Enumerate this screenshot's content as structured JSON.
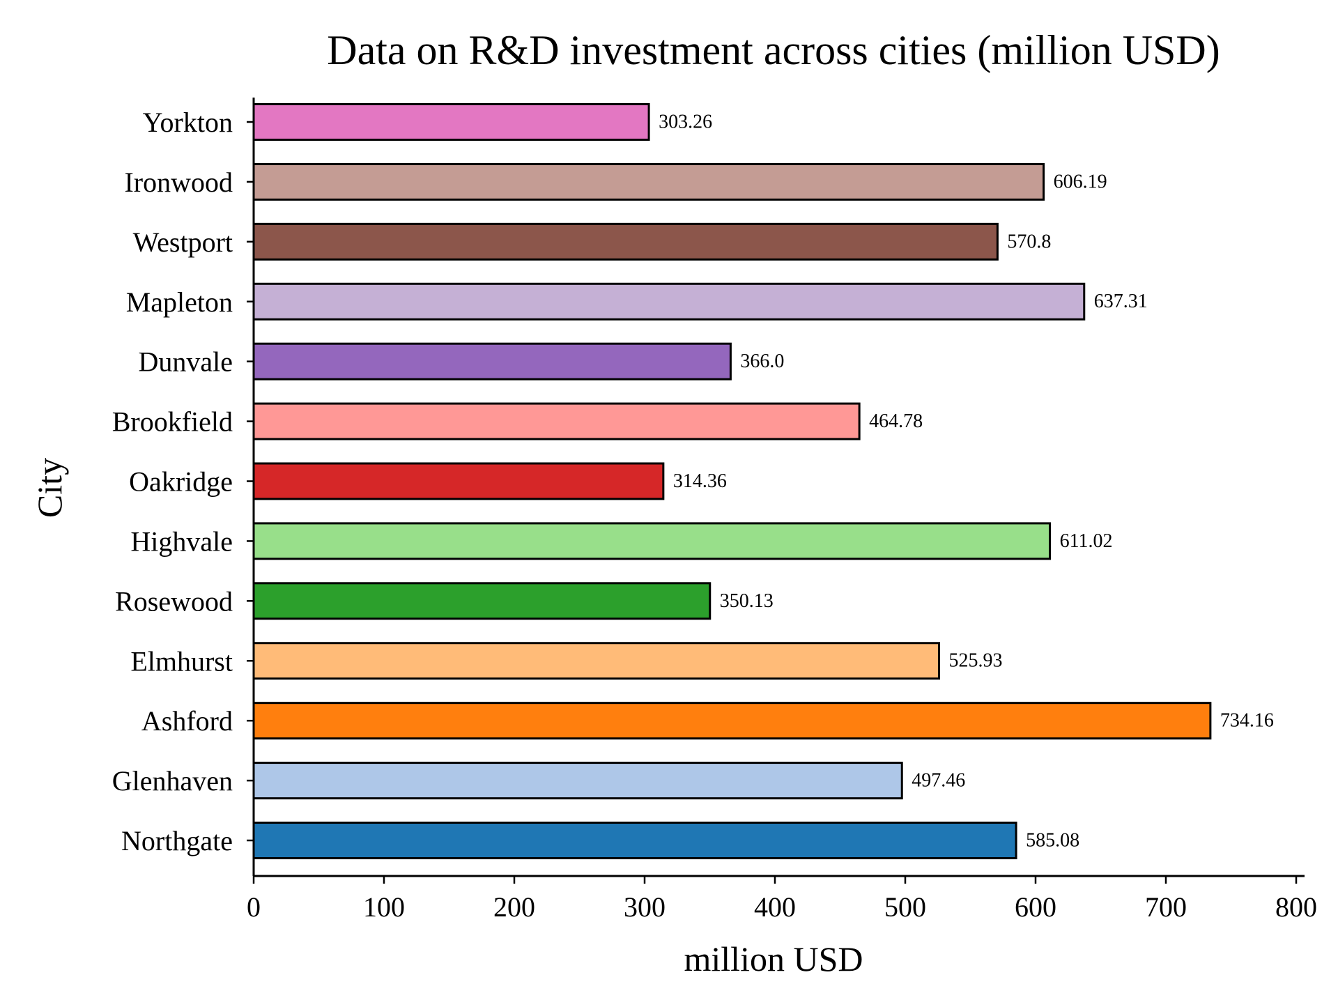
{
  "chart_data": {
    "type": "bar",
    "orientation": "horizontal",
    "title": "Data on R&D investment across cities (million USD)",
    "xlabel": "million USD",
    "ylabel": "City",
    "xlim": [
      0,
      800
    ],
    "xticks": [
      0,
      100,
      200,
      300,
      400,
      500,
      600,
      700,
      800
    ],
    "grid": false,
    "legend": "none",
    "categories": [
      "Northgate",
      "Glenhaven",
      "Ashford",
      "Elmhurst",
      "Rosewood",
      "Highvale",
      "Oakridge",
      "Brookfield",
      "Dunvale",
      "Mapleton",
      "Westport",
      "Ironwood",
      "Yorkton"
    ],
    "values": [
      585.08,
      497.46,
      734.16,
      525.93,
      350.13,
      611.02,
      314.36,
      464.78,
      366.0,
      637.31,
      570.8,
      606.19,
      303.26
    ],
    "value_labels": [
      "585.08",
      "497.46",
      "734.16",
      "525.93",
      "350.13",
      "611.02",
      "314.36",
      "464.78",
      "366.0",
      "637.31",
      "570.8",
      "606.19",
      "303.26"
    ],
    "colors": [
      "#1f77b4",
      "#aec7e8",
      "#ff7f0e",
      "#ffbb78",
      "#2ca02c",
      "#98df8a",
      "#d62728",
      "#ff9896",
      "#9467bd",
      "#c5b0d5",
      "#8c564b",
      "#c49c94",
      "#e377c2"
    ],
    "edge_color": "#000000"
  }
}
